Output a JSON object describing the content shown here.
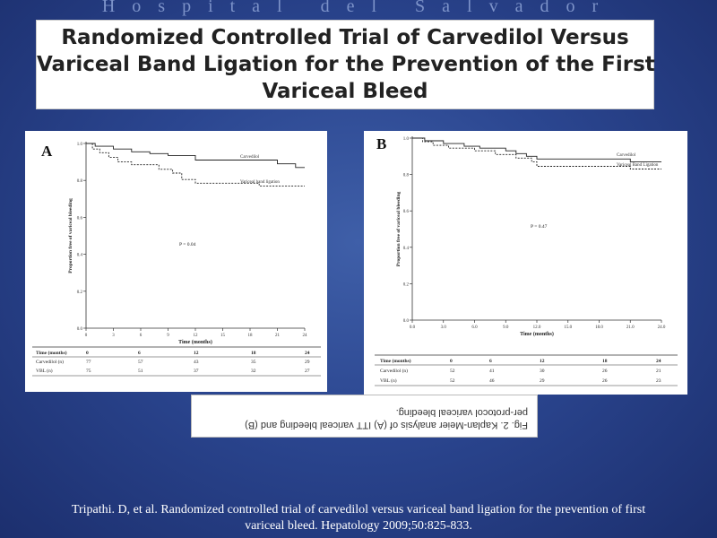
{
  "header": {
    "watermark": "Hospital del Salvador",
    "title_lines": [
      "Randomized Controlled Trial of Carvedilol Versus",
      "Variceal Band Ligation for the Prevention of the First",
      "Variceal Bleed"
    ]
  },
  "chart_data": [
    {
      "type": "line",
      "panel_label": "A",
      "ylabel": "Proportion free of variceal bleeding",
      "xlabel": "Time (months)",
      "xlim": [
        0,
        24
      ],
      "ylim": [
        0,
        1.0
      ],
      "x_ticks": [
        "0",
        "3",
        "6",
        "9",
        "12",
        "15",
        "18",
        "21",
        "24"
      ],
      "y_ticks": [
        "0.0",
        "0.2",
        "0.4",
        "0.6",
        "0.8",
        "1.0"
      ],
      "annotation": "P = 0.04",
      "series": [
        {
          "name": "Carvedilol",
          "style": "solid",
          "points": [
            [
              0,
              1.0
            ],
            [
              1,
              1.0
            ],
            [
              1,
              0.985
            ],
            [
              3,
              0.985
            ],
            [
              3,
              0.97
            ],
            [
              5,
              0.97
            ],
            [
              5,
              0.955
            ],
            [
              7,
              0.955
            ],
            [
              7,
              0.945
            ],
            [
              9,
              0.945
            ],
            [
              9,
              0.935
            ],
            [
              12,
              0.935
            ],
            [
              12,
              0.91
            ],
            [
              21,
              0.91
            ],
            [
              21,
              0.89
            ],
            [
              23,
              0.89
            ],
            [
              23,
              0.87
            ],
            [
              24,
              0.87
            ]
          ]
        },
        {
          "name": "Variceal band ligation",
          "style": "dashed",
          "points": [
            [
              0,
              1.0
            ],
            [
              0.7,
              1.0
            ],
            [
              0.7,
              0.97
            ],
            [
              1.5,
              0.97
            ],
            [
              1.5,
              0.95
            ],
            [
              2.5,
              0.95
            ],
            [
              2.5,
              0.925
            ],
            [
              3.5,
              0.925
            ],
            [
              3.5,
              0.9
            ],
            [
              5,
              0.9
            ],
            [
              5,
              0.885
            ],
            [
              8,
              0.885
            ],
            [
              8,
              0.86
            ],
            [
              9.5,
              0.86
            ],
            [
              9.5,
              0.84
            ],
            [
              10.5,
              0.84
            ],
            [
              10.5,
              0.805
            ],
            [
              12,
              0.805
            ],
            [
              12,
              0.785
            ],
            [
              19,
              0.785
            ],
            [
              19,
              0.77
            ],
            [
              24,
              0.77
            ]
          ]
        }
      ],
      "risk_table": {
        "header": [
          "Time (months)",
          "0",
          "6",
          "12",
          "18",
          "24"
        ],
        "rows": [
          [
            "Carvedilol (n)",
            "77",
            "57",
            "43",
            "35",
            "29"
          ],
          [
            "VBL (n)",
            "75",
            "51",
            "37",
            "32",
            "27"
          ]
        ]
      }
    },
    {
      "type": "line",
      "panel_label": "B",
      "ylabel": "Proportion free of variceal bleeding",
      "xlabel": "Time (months)",
      "xlim": [
        0,
        24
      ],
      "ylim": [
        0,
        1.0
      ],
      "x_ticks": [
        "0.0",
        "3.0",
        "6.0",
        "9.0",
        "12.0",
        "15.0",
        "18.0",
        "21.0",
        "24.0"
      ],
      "y_ticks": [
        "0.0",
        "0.2",
        "0.4",
        "0.6",
        "0.8",
        "1.0"
      ],
      "annotation": "P = 0.47",
      "series": [
        {
          "name": "Carvedilol",
          "style": "solid",
          "points": [
            [
              0,
              1.0
            ],
            [
              1.2,
              1.0
            ],
            [
              1.2,
              0.985
            ],
            [
              3,
              0.985
            ],
            [
              3,
              0.97
            ],
            [
              5,
              0.97
            ],
            [
              5,
              0.955
            ],
            [
              6.5,
              0.955
            ],
            [
              6.5,
              0.945
            ],
            [
              9,
              0.945
            ],
            [
              9,
              0.93
            ],
            [
              10,
              0.93
            ],
            [
              10,
              0.915
            ],
            [
              11,
              0.915
            ],
            [
              11,
              0.9
            ],
            [
              12,
              0.9
            ],
            [
              12,
              0.885
            ],
            [
              21,
              0.885
            ],
            [
              21,
              0.87
            ],
            [
              24,
              0.87
            ]
          ]
        },
        {
          "name": "Variceal Band Ligation",
          "style": "dashed",
          "points": [
            [
              0,
              1.0
            ],
            [
              1,
              1.0
            ],
            [
              1,
              0.98
            ],
            [
              2,
              0.98
            ],
            [
              2,
              0.96
            ],
            [
              3.5,
              0.96
            ],
            [
              3.5,
              0.945
            ],
            [
              6,
              0.945
            ],
            [
              6,
              0.93
            ],
            [
              8,
              0.93
            ],
            [
              8,
              0.91
            ],
            [
              10,
              0.91
            ],
            [
              10,
              0.89
            ],
            [
              11.5,
              0.89
            ],
            [
              11.5,
              0.87
            ],
            [
              12,
              0.87
            ],
            [
              12,
              0.845
            ],
            [
              21,
              0.845
            ],
            [
              21,
              0.83
            ],
            [
              24,
              0.83
            ]
          ]
        }
      ],
      "risk_table": {
        "header": [
          "Time (months)",
          "0",
          "6",
          "12",
          "18",
          "24"
        ],
        "rows": [
          [
            "Carvedilol (n)",
            "52",
            "41",
            "30",
            "26",
            "21"
          ],
          [
            "VBL (n)",
            "52",
            "46",
            "29",
            "26",
            "23"
          ]
        ]
      }
    }
  ],
  "caption": {
    "line1": "Fig. 2. Kaplan-Meier analysis of (A) ITT variceal bleeding and (B)",
    "line2": "per-protocol variceal bleeding."
  },
  "citation": {
    "line1": "Tripathi. D, et al. Randomized controlled trial of carvedilol versus variceal band ligation for the prevention of first",
    "line2": "variceal bleed. Hepatology 2009;50:825-833."
  }
}
